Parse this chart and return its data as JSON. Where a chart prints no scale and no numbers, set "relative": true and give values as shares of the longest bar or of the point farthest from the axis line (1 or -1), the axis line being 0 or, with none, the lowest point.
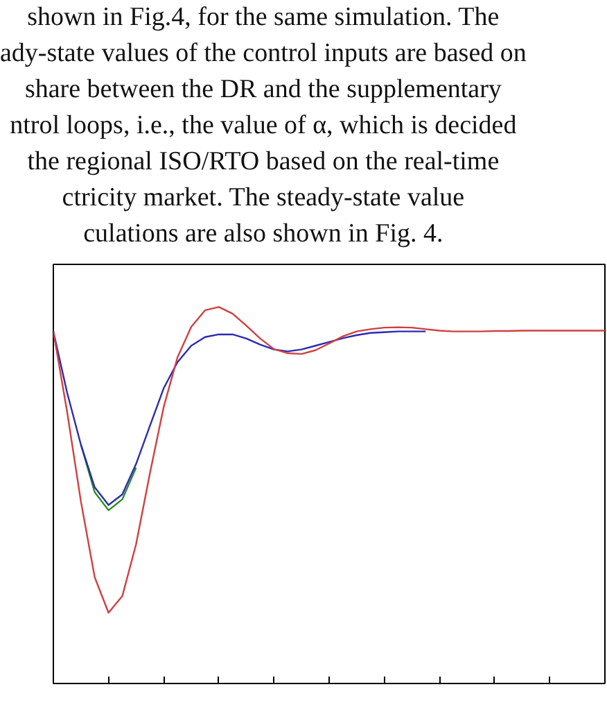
{
  "chart_data": {
    "type": "line",
    "relative": true,
    "grid": false,
    "annotations": [
      "shown in Fig.4, for the same simulation. The",
      "ady-state values of the control inputs are based on",
      "share between the DR and the supplementary",
      "ntrol loops, i.e., the value of α, which is decided",
      "the regional ISO/RTO based on the real-time",
      "ctricity market. The steady-state value",
      "culations are also shown in Fig. 4."
    ],
    "categories": [
      null,
      null,
      null,
      null,
      null,
      null,
      null,
      null,
      null,
      null,
      null,
      null,
      null,
      null,
      null,
      null,
      null,
      null,
      null,
      null,
      null,
      null,
      null,
      null,
      null,
      null,
      null,
      null,
      null,
      null,
      null,
      null,
      null,
      null,
      null,
      null,
      null,
      null,
      null,
      null,
      null
    ],
    "series": [
      {
        "color": "#2a8a2a",
        "values": [
          null,
          null,
          0.634,
          0.508,
          0.46,
          0.489,
          0.573,
          null,
          null,
          null,
          null,
          null,
          null,
          null,
          null,
          null,
          null,
          null,
          null,
          null,
          null,
          null,
          null,
          null,
          null,
          null,
          null,
          null,
          null,
          null,
          null,
          null,
          null,
          null,
          null,
          null,
          null,
          null,
          null,
          null,
          null
        ]
      },
      {
        "color": "#2b2bb0",
        "values": [
          0.935,
          0.772,
          0.634,
          0.521,
          0.474,
          0.502,
          0.583,
          0.684,
          0.784,
          0.853,
          0.897,
          0.92,
          0.927,
          0.927,
          0.916,
          0.9,
          0.887,
          0.882,
          0.887,
          0.897,
          0.907,
          0.917,
          0.925,
          0.931,
          0.933,
          0.935,
          0.935,
          0.935,
          null,
          null,
          null,
          null,
          null,
          null,
          null,
          null,
          null,
          null,
          null,
          null,
          null
        ]
      },
      {
        "color": "#d04040",
        "values": [
          0.935,
          0.721,
          0.483,
          0.282,
          0.188,
          0.232,
          0.37,
          0.558,
          0.734,
          0.866,
          0.947,
          0.991,
          1.0,
          0.982,
          0.95,
          0.916,
          0.888,
          0.877,
          0.875,
          0.885,
          0.903,
          0.922,
          0.935,
          0.941,
          0.945,
          0.946,
          0.945,
          0.941,
          0.937,
          0.935,
          0.935,
          0.935,
          0.936,
          0.936,
          0.937,
          0.937,
          0.937,
          0.937,
          0.937,
          0.937,
          0.937
        ]
      }
    ]
  }
}
